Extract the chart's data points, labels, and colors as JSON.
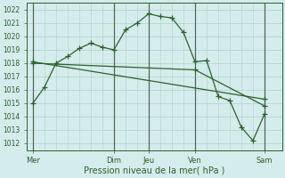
{
  "xlabel": "Pression niveau de la mer( hPa )",
  "bg_color": "#d4ecec",
  "grid_color": "#b0d0d0",
  "line_color": "#2d6030",
  "vline_color": "#556655",
  "ylim": [
    1011.5,
    1022.5
  ],
  "yticks": [
    1012,
    1013,
    1014,
    1015,
    1016,
    1017,
    1018,
    1019,
    1020,
    1021,
    1022
  ],
  "day_x": [
    0,
    7,
    10,
    14,
    20
  ],
  "day_labels": [
    "Mer",
    "Dim",
    "Jeu",
    "Ven",
    "Sam"
  ],
  "xlim": [
    -0.5,
    21.5
  ],
  "line1_x": [
    0,
    1,
    2,
    3,
    4,
    5,
    6,
    7,
    8,
    9,
    10,
    11,
    12,
    13,
    14,
    15,
    16,
    17,
    18,
    19,
    20
  ],
  "line1_y": [
    1015.0,
    1016.2,
    1018.0,
    1018.5,
    1019.1,
    1019.5,
    1019.2,
    1019.0,
    1020.5,
    1021.0,
    1021.7,
    1021.5,
    1021.4,
    1020.3,
    1018.1,
    1018.2,
    1015.5,
    1015.2,
    1013.2,
    1012.2,
    1014.2
  ],
  "line1_markers": [
    0,
    1,
    2,
    3,
    4,
    5,
    6,
    7,
    8,
    9,
    10,
    11,
    12,
    13,
    14,
    15,
    16,
    17,
    18,
    19,
    20
  ],
  "line2_x": [
    0,
    20
  ],
  "line2_y": [
    1018.1,
    1015.3
  ],
  "line2_markers": [
    0,
    20
  ],
  "line3_x": [
    0,
    14,
    20
  ],
  "line3_y": [
    1018.0,
    1017.5,
    1014.8
  ],
  "line3_markers": [
    0,
    14,
    20
  ],
  "ytick_fontsize": 5.5,
  "xtick_fontsize": 6,
  "xlabel_fontsize": 7
}
